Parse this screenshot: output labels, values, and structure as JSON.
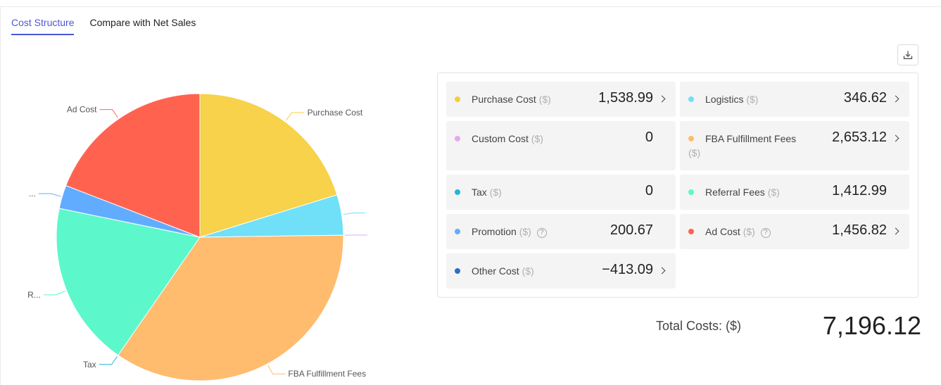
{
  "tabs": [
    {
      "label": "Cost Structure",
      "active": true
    },
    {
      "label": "Compare with Net Sales",
      "active": false
    }
  ],
  "download_icon": "download-icon",
  "chart_data": {
    "type": "pie",
    "slices": [
      {
        "label": "Purchase Cost",
        "value": 1538.99,
        "color": "#f7d24a",
        "display_label": "Purchase Cost"
      },
      {
        "label": "Logistics",
        "value": 346.62,
        "color": "#6fe0f8",
        "display_label": ""
      },
      {
        "label": "Custom Cost",
        "value": 0,
        "color": "#e2a8f0",
        "display_label": ""
      },
      {
        "label": "FBA Fulfillment Fees",
        "value": 2653.12,
        "color": "#ffbb6e",
        "display_label": "FBA Fulfillment Fees"
      },
      {
        "label": "Tax",
        "value": 0,
        "color": "#21b6d6",
        "display_label": "Tax"
      },
      {
        "label": "Referral Fees",
        "value": 1412.99,
        "color": "#5cf8cc",
        "display_label": "R..."
      },
      {
        "label": "Promotion",
        "value": 200.67,
        "color": "#62acff",
        "display_label": "..."
      },
      {
        "label": "Ad Cost",
        "value": 1456.82,
        "color": "#ff6350",
        "display_label": "Ad Cost"
      }
    ]
  },
  "unit": "($)",
  "cards": [
    {
      "label": "Purchase Cost",
      "unit": "($)",
      "value": "1,538.99",
      "color": "#f5cd3d",
      "arrow": true,
      "help": false
    },
    {
      "label": "Logistics",
      "unit": "($)",
      "value": "346.62",
      "color": "#6fe0f8",
      "arrow": true,
      "help": false
    },
    {
      "label": "Custom Cost",
      "unit": "($)",
      "value": "0",
      "color": "#e2a8f0",
      "arrow": false,
      "help": false
    },
    {
      "label": "FBA Fulfillment Fees",
      "unit": "($)",
      "value": "2,653.12",
      "color": "#ffbb6e",
      "arrow": true,
      "help": false
    },
    {
      "label": "Tax",
      "unit": "($)",
      "value": "0",
      "color": "#21b6d6",
      "arrow": false,
      "help": false
    },
    {
      "label": "Referral Fees",
      "unit": "($)",
      "value": "1,412.99",
      "color": "#5cf8cc",
      "arrow": false,
      "help": false
    },
    {
      "label": "Promotion",
      "unit": "($)",
      "value": "200.67",
      "color": "#62acff",
      "arrow": false,
      "help": true
    },
    {
      "label": "Ad Cost",
      "unit": "($)",
      "value": "1,456.82",
      "color": "#ff6350",
      "arrow": true,
      "help": true
    },
    {
      "label": "Other Cost",
      "unit": "($)",
      "value": "−413.09",
      "color": "#2c6fc9",
      "arrow": true,
      "help": false
    }
  ],
  "total": {
    "label": "Total Costs: ($)",
    "value": "7,196.12"
  }
}
